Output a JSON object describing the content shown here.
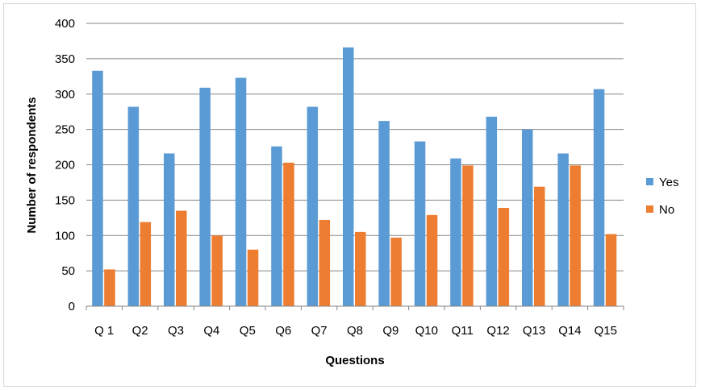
{
  "chart_data": {
    "type": "bar",
    "xlabel": "Questions",
    "ylabel": "Number of respondents",
    "ylim": [
      0,
      400
    ],
    "yticks": [
      0,
      50,
      100,
      150,
      200,
      250,
      300,
      350,
      400
    ],
    "grid": true,
    "legend_position": "right",
    "categories": [
      "Q 1",
      "Q2",
      "Q3",
      "Q4",
      "Q5",
      "Q6",
      "Q7",
      "Q8",
      "Q9",
      "Q10",
      "Q11",
      "Q12",
      "Q13",
      "Q14",
      "Q15"
    ],
    "series": [
      {
        "name": "Yes",
        "color": "#5B9BD5",
        "values": [
          333,
          282,
          216,
          309,
          323,
          226,
          282,
          366,
          262,
          233,
          209,
          268,
          250,
          216,
          307
        ]
      },
      {
        "name": "No",
        "color": "#ED7D31",
        "values": [
          52,
          119,
          135,
          100,
          80,
          203,
          122,
          105,
          97,
          129,
          199,
          139,
          169,
          199,
          102
        ]
      }
    ]
  }
}
